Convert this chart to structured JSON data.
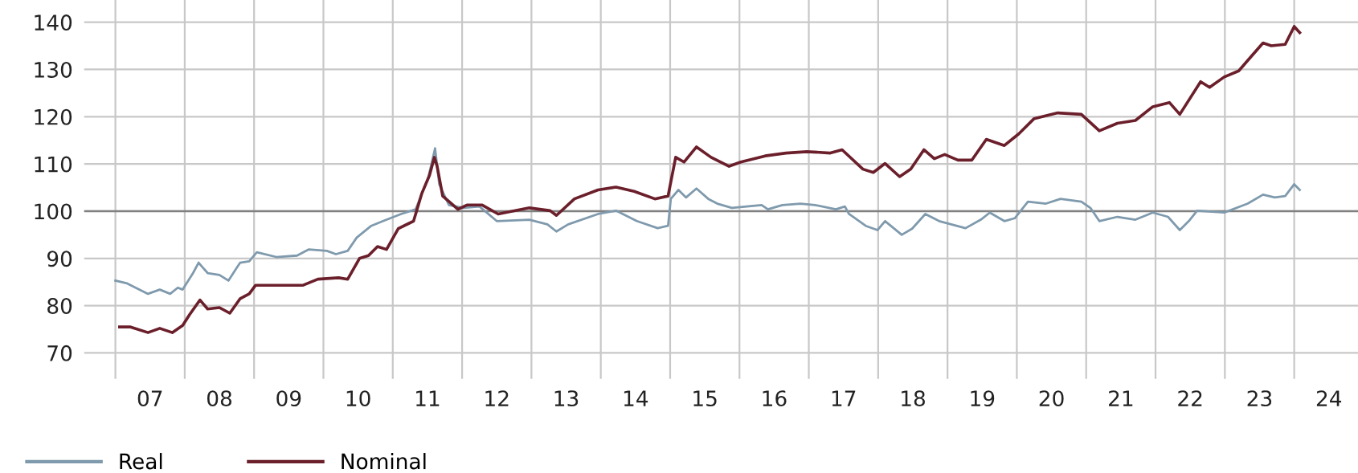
{
  "chart_data": {
    "type": "line",
    "xlim": [
      6.05,
      24.42
    ],
    "ylim": [
      64.5,
      144.7
    ],
    "yticks": [
      70,
      80,
      90,
      100,
      110,
      120,
      130,
      140
    ],
    "xticks": [
      {
        "value": 6.5,
        "label": null
      },
      {
        "value": 7,
        "label": "07"
      },
      {
        "value": 7.5,
        "label": null
      },
      {
        "value": 8,
        "label": "08"
      },
      {
        "value": 8.5,
        "label": null
      },
      {
        "value": 9,
        "label": "09"
      },
      {
        "value": 9.5,
        "label": null
      },
      10,
      {
        "value": 10.5,
        "label": null
      },
      11,
      {
        "value": 11.5,
        "label": null
      },
      12,
      {
        "value": 12.5,
        "label": null
      },
      13,
      {
        "value": 13.5,
        "label": null
      },
      14,
      {
        "value": 14.5,
        "label": null
      },
      15,
      {
        "value": 15.5,
        "label": null
      },
      16,
      {
        "value": 16.5,
        "label": null
      },
      17,
      {
        "value": 17.5,
        "label": null
      },
      18,
      {
        "value": 18.5,
        "label": null
      },
      19,
      {
        "value": 19.5,
        "label": null
      },
      20,
      {
        "value": 20.5,
        "label": null
      },
      21,
      {
        "value": 21.5,
        "label": null
      },
      22,
      {
        "value": 22.5,
        "label": null
      },
      23,
      {
        "value": 23.5,
        "label": null
      },
      24
    ],
    "grid": true,
    "legend": "bottom left",
    "ref_lines": [
      {
        "axis": "y",
        "value": 100,
        "color": "#808080"
      }
    ],
    "series": [
      {
        "name": "Real",
        "color": "#7f9aad",
        "x": [
          6.5,
          6.67,
          6.97,
          7.14,
          7.29,
          7.4,
          7.47,
          7.62,
          7.7,
          7.83,
          8.0,
          8.13,
          8.24,
          8.3,
          8.43,
          8.54,
          8.82,
          9.12,
          9.29,
          9.55,
          9.68,
          9.85,
          9.98,
          10.19,
          10.36,
          10.62,
          10.83,
          11.01,
          11.11,
          11.17,
          11.31,
          11.52,
          11.75,
          12.0,
          12.47,
          12.73,
          12.86,
          13.03,
          13.46,
          13.72,
          14.02,
          14.32,
          14.47,
          14.51,
          14.62,
          14.73,
          14.88,
          15.05,
          15.18,
          15.39,
          15.82,
          15.91,
          16.12,
          16.38,
          16.59,
          16.89,
          17.02,
          17.08,
          17.32,
          17.49,
          17.6,
          17.84,
          17.99,
          18.18,
          18.38,
          18.76,
          18.98,
          19.11,
          19.32,
          19.47,
          19.66,
          19.92,
          20.13,
          20.43,
          20.56,
          20.69,
          20.95,
          21.21,
          21.46,
          21.68,
          21.85,
          21.98,
          22.1,
          22.49,
          22.83,
          23.05,
          23.22,
          23.37,
          23.5,
          23.58
        ],
        "values": [
          85.3,
          84.7,
          82.5,
          83.4,
          82.5,
          83.8,
          83.4,
          86.9,
          89.1,
          86.9,
          86.5,
          85.3,
          87.8,
          89.1,
          89.4,
          91.3,
          90.3,
          90.6,
          91.9,
          91.6,
          90.9,
          91.6,
          94.4,
          96.9,
          97.9,
          99.4,
          100.4,
          107,
          113.3,
          105.7,
          101.3,
          100.7,
          101,
          97.9,
          98.2,
          97.2,
          95.7,
          97.2,
          99.4,
          100.1,
          97.9,
          96.4,
          96.9,
          102.6,
          104.5,
          102.9,
          104.8,
          102.6,
          101.6,
          100.7,
          101.3,
          100.4,
          101.3,
          101.6,
          101.3,
          100.4,
          101,
          99.4,
          96.9,
          96,
          97.9,
          95,
          96.3,
          99.4,
          97.9,
          96.4,
          98.2,
          99.7,
          97.9,
          98.5,
          102,
          101.6,
          102.6,
          102,
          100.7,
          97.9,
          98.8,
          98.2,
          99.7,
          98.8,
          96,
          97.9,
          100.1,
          99.7,
          101.6,
          103.5,
          102.9,
          103.2,
          105.7,
          104.5
        ]
      },
      {
        "name": "Nominal",
        "color": "#6b1f2b",
        "x": [
          6.56,
          6.71,
          6.97,
          7.14,
          7.32,
          7.47,
          7.57,
          7.72,
          7.83,
          8.0,
          8.15,
          8.3,
          8.43,
          8.52,
          9.2,
          9.42,
          9.72,
          9.85,
          10.02,
          10.15,
          10.28,
          10.41,
          10.58,
          10.8,
          10.92,
          11.03,
          11.1,
          11.14,
          11.22,
          11.44,
          11.57,
          11.79,
          12.02,
          12.47,
          12.77,
          12.86,
          13.12,
          13.46,
          13.72,
          13.98,
          14.28,
          14.47,
          14.58,
          14.7,
          14.88,
          15.09,
          15.35,
          15.52,
          15.87,
          16.17,
          16.47,
          16.81,
          16.98,
          17.28,
          17.43,
          17.6,
          17.81,
          17.97,
          18.16,
          18.31,
          18.46,
          18.65,
          18.85,
          19.06,
          19.32,
          19.53,
          19.75,
          20.09,
          20.43,
          20.69,
          20.95,
          21.21,
          21.46,
          21.7,
          21.85,
          22.15,
          22.28,
          22.49,
          22.7,
          22.83,
          23.05,
          23.17,
          23.37,
          23.5,
          23.58
        ],
        "values": [
          75.5,
          75.5,
          74.3,
          75.2,
          74.3,
          75.8,
          78.1,
          81.2,
          79.3,
          79.6,
          78.4,
          81.5,
          82.5,
          84.3,
          84.3,
          85.6,
          85.9,
          85.6,
          90,
          90.6,
          92.5,
          91.9,
          96.3,
          97.9,
          103.8,
          107.6,
          111.4,
          109.5,
          103.2,
          100.4,
          101.3,
          101.3,
          99.4,
          100.7,
          100.1,
          99.1,
          102.6,
          104.5,
          105.1,
          104.2,
          102.6,
          103.2,
          111.4,
          110.4,
          113.6,
          111.4,
          109.5,
          110.4,
          111.7,
          112.3,
          112.6,
          112.3,
          113,
          108.9,
          108.2,
          110.1,
          107.3,
          108.9,
          113,
          111.1,
          112,
          110.8,
          110.8,
          115.2,
          113.9,
          116.4,
          119.6,
          120.8,
          120.5,
          117,
          118.6,
          119.2,
          122.1,
          123,
          120.5,
          127.4,
          126.2,
          128.4,
          129.7,
          131.9,
          135.6,
          135,
          135.3,
          139.1,
          137.8
        ]
      }
    ]
  }
}
